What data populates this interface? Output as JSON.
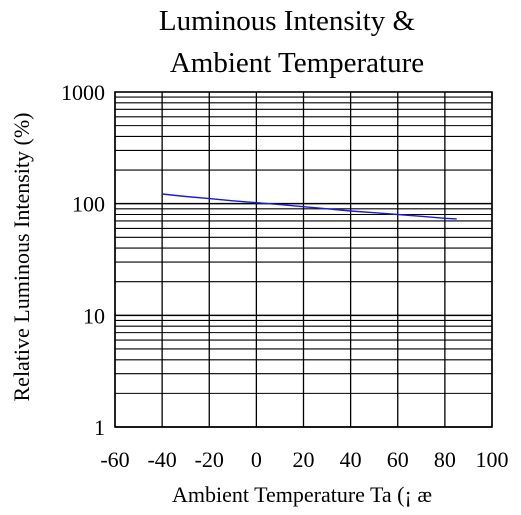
{
  "chart_data": {
    "type": "line",
    "title": [
      "Luminous Intensity &",
      "Ambient Temperature"
    ],
    "xlabel": "Ambient Temperature Ta (¡ æ",
    "ylabel": "Relative Luminous Intensity (%)",
    "x_scale": "linear",
    "y_scale": "log",
    "xlim": [
      -60,
      100
    ],
    "ylim": [
      1,
      1000
    ],
    "x_ticks": [
      "-60",
      "-40",
      "-20",
      "0",
      "20",
      "40",
      "60",
      "80",
      "100"
    ],
    "y_ticks": [
      "1",
      "10",
      "100",
      "1000"
    ],
    "grid": true,
    "series": [
      {
        "color": "#1a1adb",
        "x": [
          -40,
          -30,
          -20,
          -10,
          0,
          10,
          20,
          30,
          40,
          50,
          60,
          70,
          80,
          85
        ],
        "y": [
          122,
          116,
          111,
          106,
          102,
          98,
          94,
          90,
          86,
          83,
          80,
          77,
          74,
          73
        ]
      }
    ]
  }
}
